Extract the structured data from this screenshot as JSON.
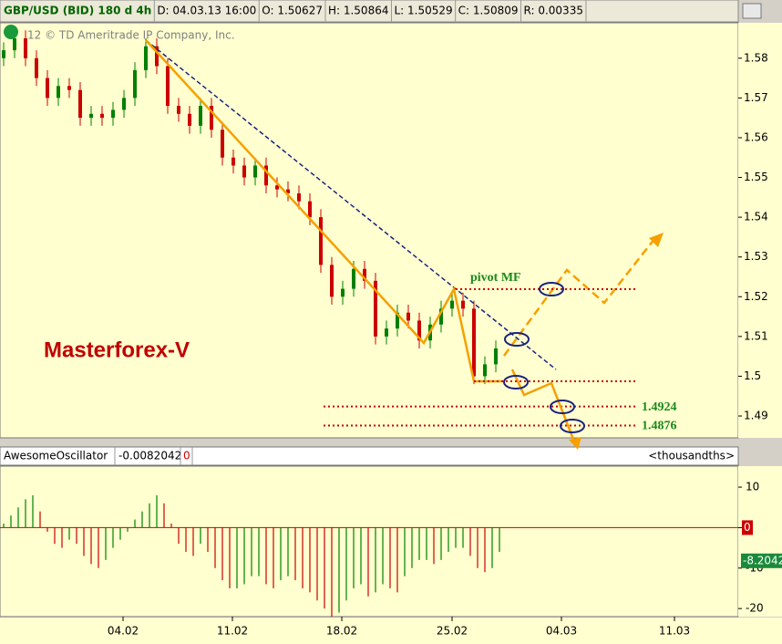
{
  "chart_data": {
    "type": "candlestick",
    "header": [
      "GBP/USD (BID) 180 d 4h",
      "D: 04.03.13 16:00",
      "O: 1.50627",
      "H: 1.50864",
      "L: 1.50529",
      "C: 1.50809",
      "R: 0.00335"
    ],
    "watermark": "12 © TD Ameritrade IP Company, Inc.",
    "annotation": "Masterforex-V",
    "pivot_label": "pivot MF",
    "levels": [
      1.4924,
      1.4876
    ],
    "x": [
      1,
      4,
      7,
      10,
      13,
      16,
      19,
      22,
      25,
      28,
      31,
      34,
      37,
      40,
      43,
      46,
      49,
      52,
      55,
      58,
      61,
      64,
      67,
      70,
      73,
      76,
      79,
      82,
      85,
      88,
      91,
      94,
      97,
      100,
      103,
      106,
      109,
      112,
      115,
      118,
      121,
      124,
      127,
      130,
      133,
      136
    ],
    "open": [
      1.58,
      1.582,
      1.585,
      1.58,
      1.575,
      1.57,
      1.573,
      1.572,
      1.565,
      1.566,
      1.565,
      1.567,
      1.57,
      1.577,
      1.583,
      1.578,
      1.568,
      1.566,
      1.563,
      1.568,
      1.562,
      1.555,
      1.553,
      1.55,
      1.553,
      1.548,
      1.547,
      1.546,
      1.544,
      1.54,
      1.528,
      1.52,
      1.522,
      1.527,
      1.524,
      1.51,
      1.512,
      1.516,
      1.514,
      1.509,
      1.513,
      1.517,
      1.519,
      1.517,
      1.5,
      1.503
    ],
    "high": [
      1.584,
      1.587,
      1.587,
      1.582,
      1.577,
      1.575,
      1.575,
      1.574,
      1.568,
      1.568,
      1.569,
      1.572,
      1.579,
      1.585,
      1.585,
      1.58,
      1.57,
      1.568,
      1.57,
      1.57,
      1.564,
      1.557,
      1.555,
      1.555,
      1.555,
      1.55,
      1.549,
      1.548,
      1.546,
      1.542,
      1.53,
      1.524,
      1.529,
      1.529,
      1.526,
      1.514,
      1.518,
      1.518,
      1.516,
      1.515,
      1.519,
      1.521,
      1.521,
      1.519,
      1.505,
      1.509
    ],
    "low": [
      1.578,
      1.58,
      1.578,
      1.573,
      1.568,
      1.568,
      1.57,
      1.563,
      1.563,
      1.563,
      1.563,
      1.565,
      1.568,
      1.575,
      1.576,
      1.566,
      1.564,
      1.561,
      1.561,
      1.56,
      1.553,
      1.551,
      1.548,
      1.548,
      1.546,
      1.545,
      1.544,
      1.542,
      1.538,
      1.526,
      1.518,
      1.518,
      1.52,
      1.522,
      1.508,
      1.508,
      1.51,
      1.512,
      1.507,
      1.507,
      1.511,
      1.515,
      1.515,
      1.498,
      1.498,
      1.501
    ],
    "close": [
      1.582,
      1.585,
      1.58,
      1.575,
      1.57,
      1.573,
      1.572,
      1.565,
      1.566,
      1.565,
      1.567,
      1.57,
      1.577,
      1.583,
      1.578,
      1.568,
      1.566,
      1.563,
      1.568,
      1.562,
      1.555,
      1.553,
      1.55,
      1.553,
      1.548,
      1.547,
      1.546,
      1.544,
      1.54,
      1.528,
      1.52,
      1.522,
      1.527,
      1.524,
      1.51,
      1.512,
      1.516,
      1.514,
      1.509,
      1.513,
      1.517,
      1.519,
      1.517,
      1.5,
      1.503,
      1.507
    ],
    "up_color": "#008000",
    "down_color": "#cc0000",
    "xlim": [
      0,
      202.5
    ],
    "xticks": [
      {
        "value": 33.75,
        "label": "04.02"
      },
      {
        "value": 63.75,
        "label": "11.02"
      },
      {
        "value": 93.75,
        "label": "18.02"
      },
      {
        "value": 124,
        "label": "25.02"
      },
      {
        "value": 154,
        "label": "04.03"
      },
      {
        "value": 185,
        "label": "11.03"
      }
    ],
    "ylim": [
      1.4845,
      1.5889
    ],
    "yticks": [
      1.49,
      1.5,
      1.51,
      1.52,
      1.53,
      1.54,
      1.55,
      1.56,
      1.57,
      1.58
    ],
    "oscillator": {
      "type": "bar",
      "name": "AwesomeOscillator",
      "value_text": "-0.0082042",
      "flag": "0",
      "unit": "<thousandths>",
      "x": [
        1,
        3,
        5,
        7,
        9,
        11,
        13,
        15,
        17,
        19,
        21,
        23,
        25,
        27,
        29,
        31,
        33,
        35,
        37,
        39,
        41,
        43,
        45,
        47,
        49,
        51,
        53,
        55,
        57,
        59,
        61,
        63,
        65,
        67,
        69,
        71,
        73,
        75,
        77,
        79,
        81,
        83,
        85,
        87,
        89,
        91,
        93,
        95,
        97,
        99,
        101,
        103,
        105,
        107,
        109,
        111,
        113,
        115,
        117,
        119,
        121,
        123,
        125,
        127,
        129,
        131,
        133,
        135,
        137
      ],
      "values": [
        1,
        3,
        5,
        7,
        8,
        4,
        -1,
        -4,
        -5,
        -3,
        -4,
        -7,
        -9,
        -10,
        -8,
        -5,
        -3,
        -1,
        2,
        4,
        6,
        8,
        6,
        1,
        -4,
        -6,
        -7,
        -4,
        -6,
        -10,
        -13,
        -15,
        -15,
        -14,
        -12,
        -12,
        -14,
        -15,
        -13,
        -12,
        -13,
        -15,
        -16,
        -18,
        -20,
        -22,
        -21,
        -18,
        -15,
        -14,
        -17,
        -16,
        -14,
        -15,
        -16,
        -12,
        -10,
        -8,
        -8,
        -9,
        -8,
        -6,
        -5,
        -5,
        -7,
        -10,
        -11,
        -10,
        -6
      ],
      "last_value": -8.2042,
      "ylim": [
        -22,
        15.2
      ],
      "yticks": [
        10,
        0,
        -10,
        -20
      ]
    }
  }
}
